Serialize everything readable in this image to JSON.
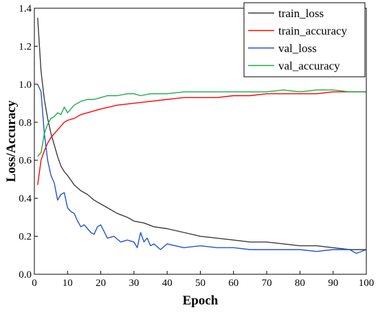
{
  "chart_data": {
    "type": "line",
    "xlabel": "Epoch",
    "ylabel": "Loss/Accuracy",
    "xlim": [
      0,
      100
    ],
    "ylim": [
      0.0,
      1.4
    ],
    "x_ticks": [
      0,
      10,
      20,
      30,
      40,
      50,
      60,
      70,
      80,
      90,
      100
    ],
    "y_ticks": [
      0.0,
      0.2,
      0.4,
      0.6,
      0.8,
      1.0,
      1.2,
      1.4
    ],
    "y_tick_labels": [
      "0.0",
      "0.2",
      "0.4",
      "0.6",
      "0.8",
      "1.0",
      "1.2",
      "1.4"
    ],
    "grid": false,
    "legend_position": "top-right",
    "series": [
      {
        "name": "train_loss",
        "color": "#3a3a3a",
        "x": [
          1,
          2,
          3,
          4,
          5,
          6,
          7,
          8,
          9,
          10,
          12,
          14,
          16,
          18,
          20,
          22,
          25,
          28,
          30,
          33,
          36,
          40,
          45,
          50,
          55,
          60,
          65,
          70,
          75,
          80,
          85,
          90,
          95,
          100
        ],
        "values": [
          1.35,
          1.07,
          0.92,
          0.82,
          0.74,
          0.68,
          0.62,
          0.57,
          0.54,
          0.52,
          0.47,
          0.44,
          0.42,
          0.39,
          0.37,
          0.35,
          0.32,
          0.3,
          0.28,
          0.27,
          0.25,
          0.24,
          0.22,
          0.2,
          0.19,
          0.18,
          0.17,
          0.17,
          0.16,
          0.15,
          0.15,
          0.14,
          0.13,
          0.13
        ]
      },
      {
        "name": "train_accuracy",
        "color": "#ff0000",
        "x": [
          1,
          2,
          3,
          4,
          5,
          6,
          7,
          8,
          9,
          10,
          12,
          14,
          16,
          18,
          20,
          25,
          30,
          35,
          40,
          45,
          50,
          55,
          60,
          65,
          70,
          75,
          80,
          85,
          90,
          95,
          100
        ],
        "values": [
          0.47,
          0.6,
          0.65,
          0.69,
          0.72,
          0.74,
          0.76,
          0.78,
          0.8,
          0.81,
          0.82,
          0.84,
          0.85,
          0.86,
          0.87,
          0.89,
          0.9,
          0.91,
          0.92,
          0.93,
          0.93,
          0.93,
          0.94,
          0.94,
          0.95,
          0.95,
          0.95,
          0.95,
          0.96,
          0.96,
          0.96
        ]
      },
      {
        "name": "val_loss",
        "color": "#1f4fe0",
        "x": [
          1,
          2,
          3,
          4,
          5,
          6,
          7,
          8,
          9,
          10,
          11,
          12,
          13,
          14,
          15,
          16,
          17,
          18,
          19,
          20,
          22,
          24,
          26,
          28,
          30,
          31,
          32,
          33,
          34,
          35,
          36,
          38,
          40,
          45,
          50,
          55,
          60,
          65,
          70,
          75,
          80,
          85,
          90,
          95,
          97,
          100
        ],
        "values": [
          1.0,
          0.96,
          0.74,
          0.6,
          0.52,
          0.48,
          0.39,
          0.42,
          0.43,
          0.35,
          0.33,
          0.32,
          0.28,
          0.25,
          0.26,
          0.24,
          0.22,
          0.21,
          0.25,
          0.26,
          0.19,
          0.2,
          0.17,
          0.18,
          0.17,
          0.14,
          0.22,
          0.17,
          0.19,
          0.15,
          0.16,
          0.13,
          0.16,
          0.14,
          0.15,
          0.14,
          0.14,
          0.13,
          0.13,
          0.13,
          0.13,
          0.12,
          0.13,
          0.13,
          0.11,
          0.13
        ]
      },
      {
        "name": "val_accuracy",
        "color": "#1aaa4a",
        "x": [
          1,
          2,
          3,
          4,
          5,
          6,
          7,
          8,
          9,
          10,
          12,
          14,
          16,
          18,
          20,
          22,
          25,
          28,
          30,
          32,
          35,
          40,
          45,
          50,
          55,
          60,
          65,
          70,
          75,
          80,
          85,
          90,
          95,
          100
        ],
        "values": [
          0.62,
          0.64,
          0.74,
          0.79,
          0.82,
          0.83,
          0.85,
          0.84,
          0.88,
          0.85,
          0.89,
          0.91,
          0.92,
          0.92,
          0.93,
          0.94,
          0.94,
          0.95,
          0.95,
          0.94,
          0.95,
          0.95,
          0.96,
          0.96,
          0.96,
          0.96,
          0.96,
          0.96,
          0.97,
          0.96,
          0.97,
          0.97,
          0.96,
          0.96
        ]
      }
    ]
  }
}
